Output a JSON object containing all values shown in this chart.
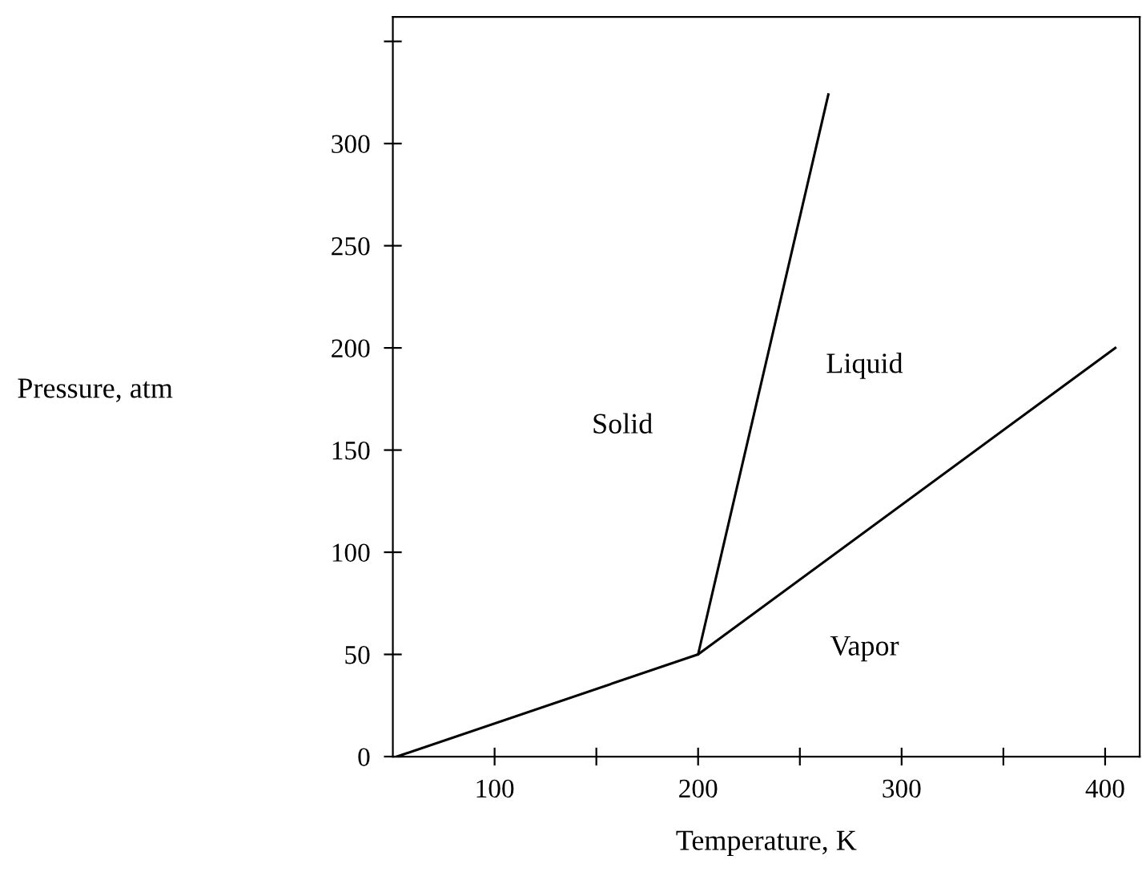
{
  "chart_data": {
    "type": "line",
    "xlabel": "Temperature, K",
    "xlim": [
      50,
      417
    ],
    "ylim": [
      0,
      362
    ],
    "xticks": [
      100,
      {
        "value": 150,
        "label": null
      },
      200,
      {
        "value": 250,
        "label": null
      },
      300,
      {
        "value": 350,
        "label": null
      },
      400
    ],
    "yticks": [
      0,
      50,
      100,
      150,
      200,
      250,
      300,
      {
        "value": 350,
        "label": null
      }
    ],
    "grid": false,
    "marker": "none",
    "line_style": "solid",
    "series": [
      {
        "color": "#000000",
        "x": [
          52,
          200,
          405
        ],
        "values": [
          0,
          50,
          200
        ]
      },
      {
        "color": "#000000",
        "x": [
          200,
          264
        ],
        "values": [
          50,
          324
        ]
      }
    ],
    "annotations": [
      "Pressure, atm",
      "Solid",
      "Liquid",
      "Vapor"
    ]
  }
}
